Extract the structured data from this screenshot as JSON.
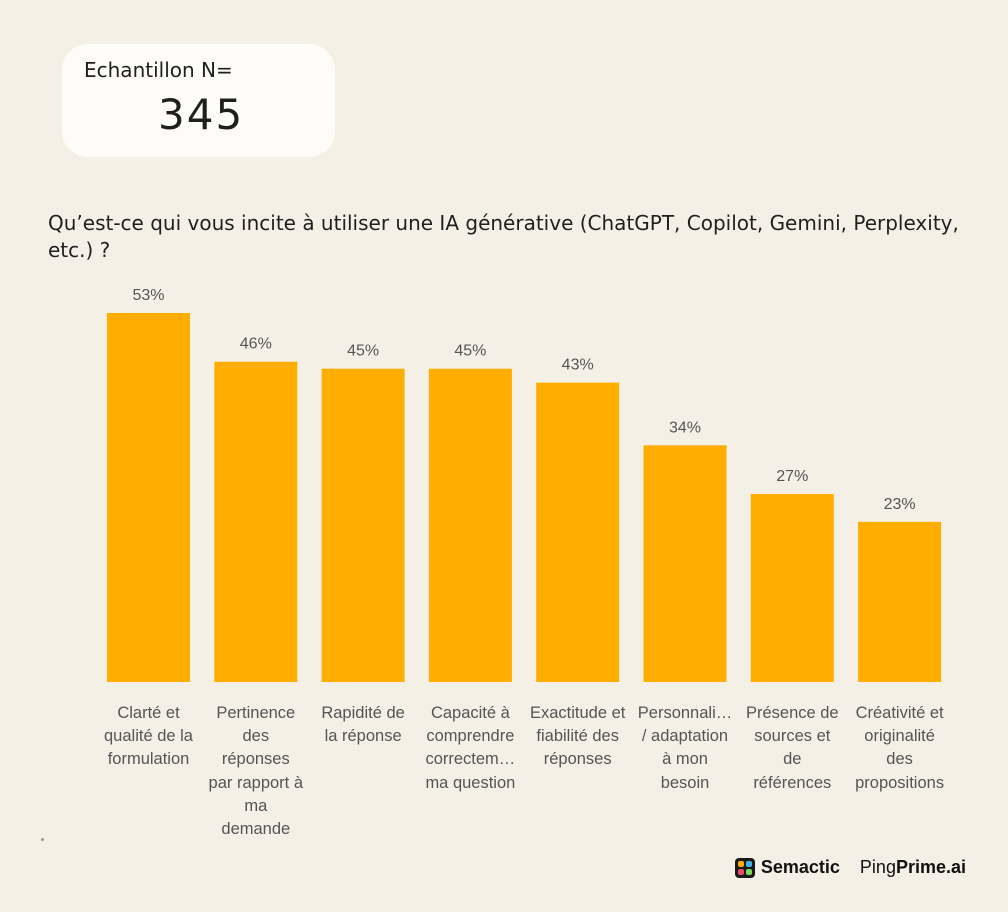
{
  "sample": {
    "label": "Echantillon N=",
    "value": "345"
  },
  "chart_data": {
    "type": "bar",
    "title": "Qu’est-ce qui vous incite à utiliser une IA générative (ChatGPT, Copilot, Gemini, Perplexity, etc.) ?",
    "categories": [
      "Clarté et qualité de la formulation",
      "Pertinence des réponses par rapport à ma demande",
      "Rapidité de la réponse",
      "Capacité à comprendre correctem… ma question",
      "Exactitude et fiabilité des réponses",
      "Personnali… / adaptation à mon besoin",
      "Présence de sources et de références",
      "Créativité et originalité des propositions"
    ],
    "values": [
      53,
      46,
      45,
      45,
      43,
      34,
      27,
      23
    ],
    "value_labels": [
      "53%",
      "46%",
      "45%",
      "45%",
      "43%",
      "34%",
      "27%",
      "23%"
    ],
    "unit": "%",
    "xlabel": "",
    "ylabel": "",
    "ylim": [
      0,
      53
    ],
    "grid": false,
    "color": "#ffae00"
  },
  "footer": {
    "brand_1": "Semactic",
    "brand_2_regular": "Ping",
    "brand_2_bold": "Prime.ai"
  }
}
